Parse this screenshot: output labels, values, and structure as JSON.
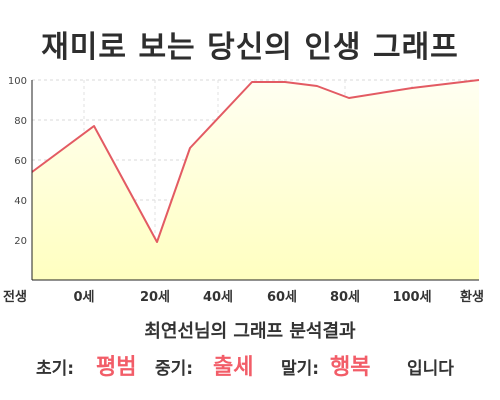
{
  "title": "재미로 보는 당신의 인생 그래프",
  "subtitle": "최연선님의 그래프 분석결과",
  "result": {
    "early_label": "초기:",
    "early_value": "평범",
    "middle_label": "중기:",
    "middle_value": "출세",
    "late_label": "말기:",
    "late_value": "행복",
    "suffix": "입니다"
  },
  "colors": {
    "line": "#e35b63",
    "fill": "#ffffc0",
    "fill_edge": "#fffff2",
    "highlight": "#f25d68"
  },
  "chart_data": {
    "type": "area",
    "x_tick_labels": [
      "전생",
      "0세",
      "20세",
      "40세",
      "60세",
      "80세",
      "100세",
      "환생"
    ],
    "y_tick_labels": [
      "20",
      "40",
      "60",
      "80",
      "100"
    ],
    "ylim": [
      0,
      100
    ],
    "grid": true,
    "points": [
      {
        "x": "전생",
        "y": 54
      },
      {
        "x": "0세",
        "y": 77
      },
      {
        "x": "20세",
        "y": 19
      },
      {
        "x": "30세",
        "y": 66
      },
      {
        "x": "50세",
        "y": 99
      },
      {
        "x": "60세",
        "y": 99
      },
      {
        "x": "70세",
        "y": 97
      },
      {
        "x": "80세",
        "y": 91
      },
      {
        "x": "100세",
        "y": 96
      },
      {
        "x": "환생",
        "y": 100
      }
    ]
  }
}
